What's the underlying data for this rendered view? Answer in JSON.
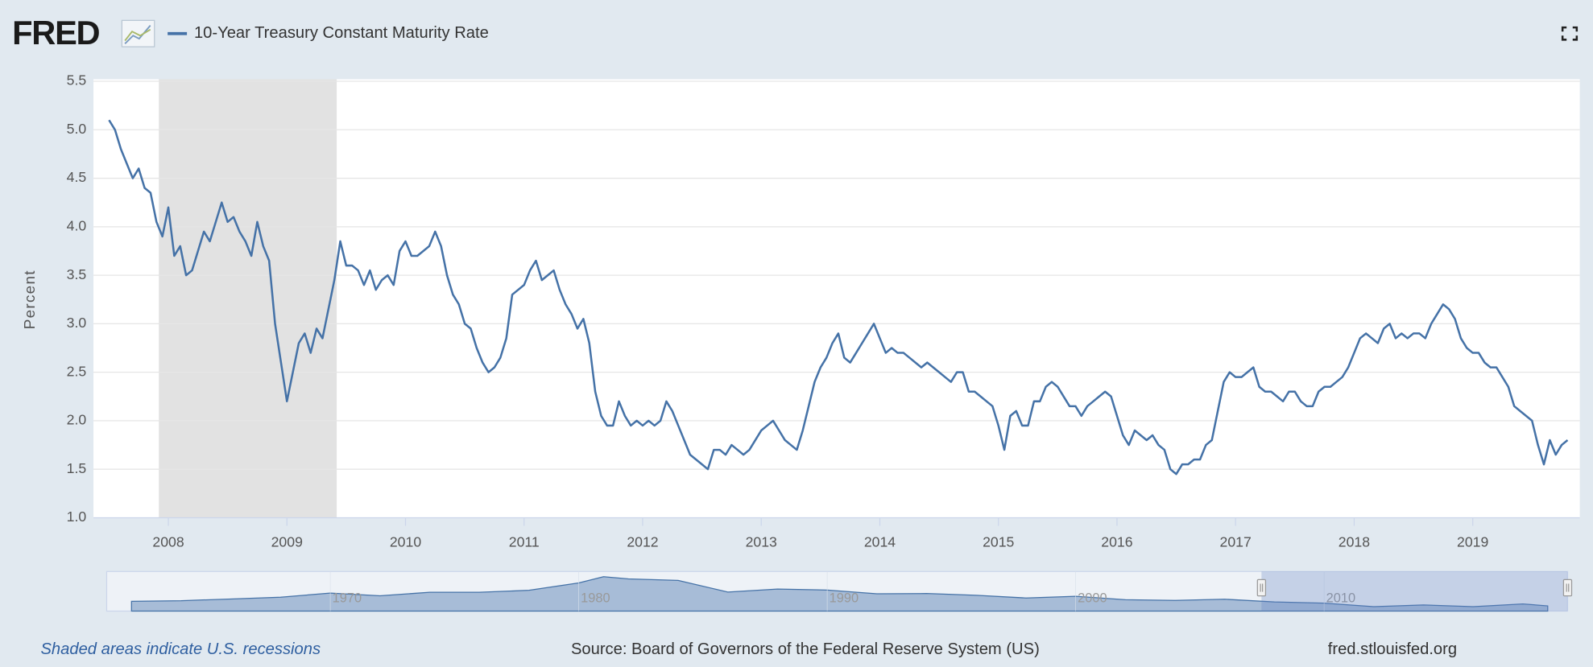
{
  "logo": "FRED",
  "chart_data": [
    {
      "type": "line",
      "x": [
        2007.5,
        2007.55,
        2007.6,
        2007.65,
        2007.7,
        2007.75,
        2007.8,
        2007.85,
        2007.9,
        2007.95,
        2008,
        2008.05,
        2008.1,
        2008.15,
        2008.2,
        2008.25,
        2008.3,
        2008.35,
        2008.4,
        2008.45,
        2008.5,
        2008.55,
        2008.6,
        2008.65,
        2008.7,
        2008.75,
        2008.8,
        2008.85,
        2008.9,
        2008.95,
        2009,
        2009.05,
        2009.1,
        2009.15,
        2009.2,
        2009.25,
        2009.3,
        2009.35,
        2009.4,
        2009.45,
        2009.5,
        2009.55,
        2009.6,
        2009.65,
        2009.7,
        2009.75,
        2009.8,
        2009.85,
        2009.9,
        2009.95,
        2010,
        2010.05,
        2010.1,
        2010.15,
        2010.2,
        2010.25,
        2010.3,
        2010.35,
        2010.4,
        2010.45,
        2010.5,
        2010.55,
        2010.6,
        2010.65,
        2010.7,
        2010.75,
        2010.8,
        2010.85,
        2010.9,
        2010.95,
        2011,
        2011.05,
        2011.1,
        2011.15,
        2011.2,
        2011.25,
        2011.3,
        2011.35,
        2011.4,
        2011.45,
        2011.5,
        2011.55,
        2011.6,
        2011.65,
        2011.7,
        2011.75,
        2011.8,
        2011.85,
        2011.9,
        2011.95,
        2012,
        2012.05,
        2012.1,
        2012.15,
        2012.2,
        2012.25,
        2012.3,
        2012.35,
        2012.4,
        2012.45,
        2012.5,
        2012.55,
        2012.6,
        2012.65,
        2012.7,
        2012.75,
        2012.8,
        2012.85,
        2012.9,
        2012.95,
        2013,
        2013.05,
        2013.1,
        2013.15,
        2013.2,
        2013.25,
        2013.3,
        2013.35,
        2013.4,
        2013.45,
        2013.5,
        2013.55,
        2013.6,
        2013.65,
        2013.7,
        2013.75,
        2013.8,
        2013.85,
        2013.9,
        2013.95,
        2014,
        2014.05,
        2014.1,
        2014.15,
        2014.2,
        2014.25,
        2014.3,
        2014.35,
        2014.4,
        2014.45,
        2014.5,
        2014.55,
        2014.6,
        2014.65,
        2014.7,
        2014.75,
        2014.8,
        2014.85,
        2014.9,
        2014.95,
        2015,
        2015.05,
        2015.1,
        2015.15,
        2015.2,
        2015.25,
        2015.3,
        2015.35,
        2015.4,
        2015.45,
        2015.5,
        2015.55,
        2015.6,
        2015.65,
        2015.7,
        2015.75,
        2015.8,
        2015.85,
        2015.9,
        2015.95,
        2016,
        2016.05,
        2016.1,
        2016.15,
        2016.2,
        2016.25,
        2016.3,
        2016.35,
        2016.4,
        2016.45,
        2016.5,
        2016.55,
        2016.6,
        2016.65,
        2016.7,
        2016.75,
        2016.8,
        2016.85,
        2016.9,
        2016.95,
        2017,
        2017.05,
        2017.1,
        2017.15,
        2017.2,
        2017.25,
        2017.3,
        2017.35,
        2017.4,
        2017.45,
        2017.5,
        2017.55,
        2017.6,
        2017.65,
        2017.7,
        2017.75,
        2017.8,
        2017.85,
        2017.9,
        2017.95,
        2018,
        2018.05,
        2018.1,
        2018.15,
        2018.2,
        2018.25,
        2018.3,
        2018.35,
        2018.4,
        2018.45,
        2018.5,
        2018.55,
        2018.6,
        2018.65,
        2018.7,
        2018.75,
        2018.8,
        2018.85,
        2018.9,
        2018.95,
        2019,
        2019.05,
        2019.1,
        2019.15,
        2019.2,
        2019.25,
        2019.3,
        2019.35,
        2019.4,
        2019.45,
        2019.5,
        2019.55,
        2019.6,
        2019.65,
        2019.7,
        2019.75,
        2019.8
      ],
      "series": [
        {
          "name": "10-Year Treasury Constant Maturity Rate",
          "color": "#4572a7",
          "values": [
            5.1,
            5.0,
            4.8,
            4.65,
            4.5,
            4.6,
            4.4,
            4.35,
            4.05,
            3.9,
            4.2,
            3.7,
            3.8,
            3.5,
            3.55,
            3.75,
            3.95,
            3.85,
            4.05,
            4.25,
            4.05,
            4.1,
            3.95,
            3.85,
            3.7,
            4.05,
            3.8,
            3.65,
            3.0,
            2.6,
            2.2,
            2.5,
            2.8,
            2.9,
            2.7,
            2.95,
            2.85,
            3.15,
            3.45,
            3.85,
            3.6,
            3.6,
            3.55,
            3.4,
            3.55,
            3.35,
            3.45,
            3.5,
            3.4,
            3.75,
            3.85,
            3.7,
            3.7,
            3.75,
            3.8,
            3.95,
            3.8,
            3.5,
            3.3,
            3.2,
            3.0,
            2.95,
            2.75,
            2.6,
            2.5,
            2.55,
            2.65,
            2.85,
            3.3,
            3.35,
            3.4,
            3.55,
            3.65,
            3.45,
            3.5,
            3.55,
            3.35,
            3.2,
            3.1,
            2.95,
            3.05,
            2.8,
            2.3,
            2.05,
            1.95,
            1.95,
            2.2,
            2.05,
            1.95,
            2.0,
            1.95,
            2.0,
            1.95,
            2.0,
            2.2,
            2.1,
            1.95,
            1.8,
            1.65,
            1.6,
            1.55,
            1.5,
            1.7,
            1.7,
            1.65,
            1.75,
            1.7,
            1.65,
            1.7,
            1.8,
            1.9,
            1.95,
            2.0,
            1.9,
            1.8,
            1.75,
            1.7,
            1.9,
            2.15,
            2.4,
            2.55,
            2.65,
            2.8,
            2.9,
            2.65,
            2.6,
            2.7,
            2.8,
            2.9,
            3.0,
            2.85,
            2.7,
            2.75,
            2.7,
            2.7,
            2.65,
            2.6,
            2.55,
            2.6,
            2.55,
            2.5,
            2.45,
            2.4,
            2.5,
            2.5,
            2.3,
            2.3,
            2.25,
            2.2,
            2.15,
            1.95,
            1.7,
            2.05,
            2.1,
            1.95,
            1.95,
            2.2,
            2.2,
            2.35,
            2.4,
            2.35,
            2.25,
            2.15,
            2.15,
            2.05,
            2.15,
            2.2,
            2.25,
            2.3,
            2.25,
            2.05,
            1.85,
            1.75,
            1.9,
            1.85,
            1.8,
            1.85,
            1.75,
            1.7,
            1.5,
            1.45,
            1.55,
            1.55,
            1.6,
            1.6,
            1.75,
            1.8,
            2.1,
            2.4,
            2.5,
            2.45,
            2.45,
            2.5,
            2.55,
            2.35,
            2.3,
            2.3,
            2.25,
            2.2,
            2.3,
            2.3,
            2.2,
            2.15,
            2.15,
            2.3,
            2.35,
            2.35,
            2.4,
            2.45,
            2.55,
            2.7,
            2.85,
            2.9,
            2.85,
            2.8,
            2.95,
            3.0,
            2.85,
            2.9,
            2.85,
            2.9,
            2.9,
            2.85,
            3.0,
            3.1,
            3.2,
            3.15,
            3.05,
            2.85,
            2.75,
            2.7,
            2.7,
            2.6,
            2.55,
            2.55,
            2.45,
            2.35,
            2.15,
            2.1,
            2.05,
            2.0,
            1.75,
            1.55,
            1.8,
            1.65,
            1.75,
            1.8
          ]
        }
      ],
      "xlim": [
        2007.48,
        2019.8
      ],
      "xticks": [
        2008,
        2009,
        2010,
        2011,
        2012,
        2013,
        2014,
        2015,
        2016,
        2017,
        2018,
        2019
      ],
      "ylim": [
        1,
        5.5
      ],
      "yticks": [
        {
          "value": 1,
          "label": "1.0"
        },
        1.5,
        {
          "value": 2,
          "label": "2.0"
        },
        2.5,
        {
          "value": 3,
          "label": "3.0"
        },
        3.5,
        {
          "value": 4,
          "label": "4.0"
        },
        4.5,
        {
          "value": 5,
          "label": "5.0"
        },
        5.5
      ],
      "ylabel": "Percent",
      "grid": true,
      "recessions": [
        {
          "start": 2007.92,
          "end": 2009.42
        }
      ]
    },
    {
      "type": "area",
      "x": [
        1962,
        1964,
        1966,
        1968,
        1970,
        1972,
        1974,
        1976,
        1978,
        1980,
        1981,
        1982,
        1984,
        1986,
        1988,
        1990,
        1992,
        1994,
        1996,
        1998,
        2000,
        2002,
        2004,
        2006,
        2008,
        2010,
        2012,
        2014,
        2016,
        2018,
        2019
      ],
      "values": [
        3.95,
        4.2,
        4.9,
        5.6,
        7.3,
        6.2,
        7.6,
        7.6,
        8.4,
        11.4,
        13.9,
        13.0,
        12.4,
        7.7,
        8.9,
        8.5,
        7.0,
        7.1,
        6.4,
        5.3,
        6.0,
        4.6,
        4.3,
        4.8,
        3.7,
        3.2,
        1.8,
        2.5,
        1.8,
        2.9,
        2.1
      ],
      "color": "#4572a7",
      "xlim": [
        1961,
        2019.8
      ],
      "ylim": [
        0,
        16
      ],
      "xticks": [
        1970,
        1980,
        1990,
        2000,
        2010
      ]
    }
  ],
  "footer": {
    "note": "Shaded areas indicate U.S. recessions",
    "source": "Source: Board of Governors of the Federal Reserve System (US)",
    "url": "fred.stlouisfed.org"
  }
}
